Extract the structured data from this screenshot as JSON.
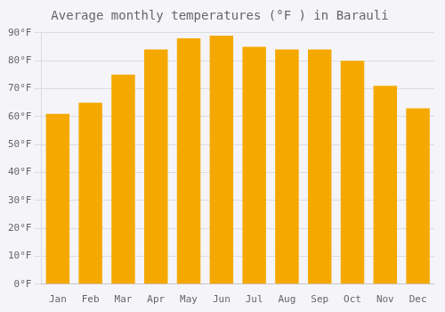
{
  "chart_data": {
    "type": "bar",
    "title": "Average monthly temperatures (°F ) in Barauli",
    "categories": [
      "Jan",
      "Feb",
      "Mar",
      "Apr",
      "May",
      "Jun",
      "Jul",
      "Aug",
      "Sep",
      "Oct",
      "Nov",
      "Dec"
    ],
    "values": [
      61,
      65,
      75,
      84,
      88,
      89,
      85,
      84,
      84,
      80,
      71,
      63
    ],
    "color": "#F5A800",
    "ylim": [
      0,
      90
    ],
    "yticks": [
      {
        "value": 0,
        "label": "0°F"
      },
      {
        "value": 10,
        "label": "10°F"
      },
      {
        "value": 20,
        "label": "20°F"
      },
      {
        "value": 30,
        "label": "30°F"
      },
      {
        "value": 40,
        "label": "40°F"
      },
      {
        "value": 50,
        "label": "50°F"
      },
      {
        "value": 60,
        "label": "60°F"
      },
      {
        "value": 70,
        "label": "70°F"
      },
      {
        "value": 80,
        "label": "80°F"
      },
      {
        "value": 90,
        "label": "90°F"
      }
    ],
    "grid": true
  }
}
